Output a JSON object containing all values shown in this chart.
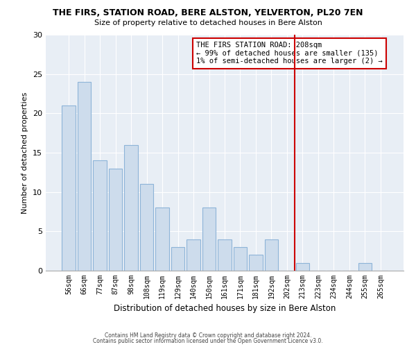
{
  "title": "THE FIRS, STATION ROAD, BERE ALSTON, YELVERTON, PL20 7EN",
  "subtitle": "Size of property relative to detached houses in Bere Alston",
  "xlabel": "Distribution of detached houses by size in Bere Alston",
  "ylabel": "Number of detached properties",
  "bar_labels": [
    "56sqm",
    "66sqm",
    "77sqm",
    "87sqm",
    "98sqm",
    "108sqm",
    "119sqm",
    "129sqm",
    "140sqm",
    "150sqm",
    "161sqm",
    "171sqm",
    "181sqm",
    "192sqm",
    "202sqm",
    "213sqm",
    "223sqm",
    "234sqm",
    "244sqm",
    "255sqm",
    "265sqm"
  ],
  "bar_values": [
    21,
    24,
    14,
    13,
    16,
    11,
    8,
    3,
    4,
    8,
    4,
    3,
    2,
    4,
    0,
    1,
    0,
    0,
    0,
    1,
    0
  ],
  "bar_color": "#cddcec",
  "bar_edge_color": "#8db4d8",
  "marker_line_color": "#cc0000",
  "annotation_line1": "THE FIRS STATION ROAD: 208sqm",
  "annotation_line2": "← 99% of detached houses are smaller (135)",
  "annotation_line3": "1% of semi-detached houses are larger (2) →",
  "annotation_box_edge_color": "#cc0000",
  "ylim": [
    0,
    30
  ],
  "yticks": [
    0,
    5,
    10,
    15,
    20,
    25,
    30
  ],
  "footer1": "Contains HM Land Registry data © Crown copyright and database right 2024.",
  "footer2": "Contains public sector information licensed under the Open Government Licence v3.0.",
  "bg_color": "#ffffff",
  "plot_bg_color": "#e8eef5",
  "grid_color": "#ffffff"
}
